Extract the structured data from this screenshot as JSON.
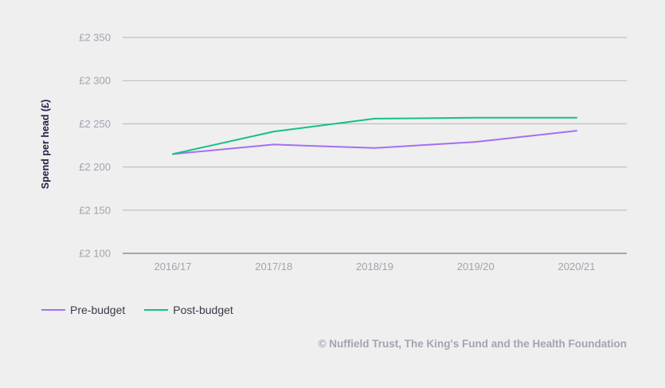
{
  "chart_data": {
    "type": "line",
    "ylabel": "Spend per head (£)",
    "categories": [
      "2016/17",
      "2017/18",
      "2018/19",
      "2019/20",
      "2020/21"
    ],
    "ylim": [
      2100,
      2350
    ],
    "yticks": [
      2100,
      2150,
      2200,
      2250,
      2300,
      2350
    ],
    "ytick_labels": [
      "£2 100",
      "£2 150",
      "£2 200",
      "£2 250",
      "£2 300",
      "£2 350"
    ],
    "grid": true,
    "legend_position": "bottom-left",
    "series": [
      {
        "name": "Pre-budget",
        "color": "#a66ff0",
        "values": [
          2215,
          2226,
          2222,
          2229,
          2242
        ]
      },
      {
        "name": "Post-budget",
        "color": "#14c08a",
        "values": [
          2215,
          2241,
          2256,
          2257,
          2257
        ]
      }
    ]
  },
  "credit": "© Nuffield Trust, The King's Fund and the Health Foundation"
}
